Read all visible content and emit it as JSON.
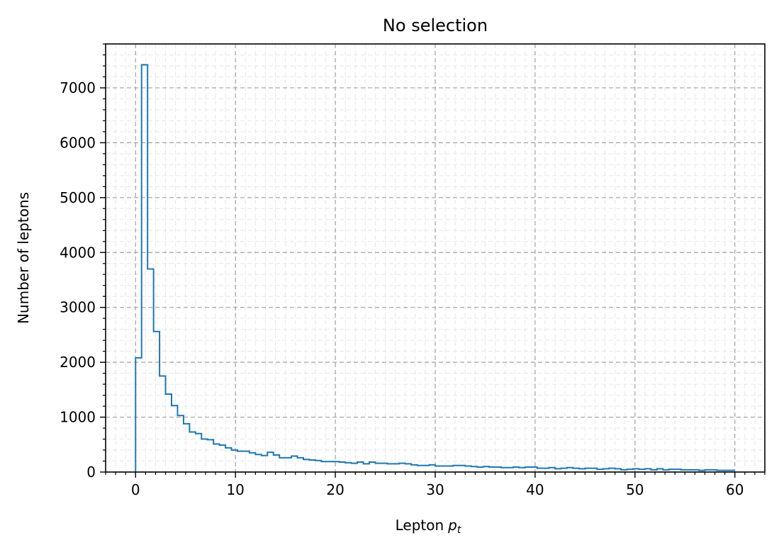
{
  "chart_data": {
    "type": "histogram",
    "title": "No selection",
    "xlabel": "Lepton",
    "xlabel_symbol": "p",
    "xlabel_subscript": "t",
    "ylabel": "Number of leptons",
    "xlim": [
      -3,
      63
    ],
    "ylim": [
      0,
      7800
    ],
    "x_ticks": [
      0,
      10,
      20,
      30,
      40,
      50,
      60
    ],
    "x_tick_labels": [
      "0",
      "10",
      "20",
      "30",
      "40",
      "50",
      "60"
    ],
    "y_ticks": [
      0,
      1000,
      2000,
      3000,
      4000,
      5000,
      6000,
      7000
    ],
    "y_tick_labels": [
      "0",
      "1000",
      "2000",
      "3000",
      "4000",
      "5000",
      "6000",
      "7000"
    ],
    "x_minor_step": 1,
    "y_minor_step": 200,
    "grid": true,
    "minor_grid": true,
    "line_color": "#1f77b4",
    "grid_color": "#a0a0a0",
    "minor_grid_color": "#e6e6e6",
    "series": [
      {
        "bin_edges_start": 0,
        "bin_width": 0.6,
        "values": [
          2080,
          7420,
          3700,
          2560,
          1750,
          1420,
          1210,
          1030,
          880,
          730,
          700,
          600,
          590,
          510,
          490,
          440,
          400,
          380,
          380,
          350,
          320,
          300,
          360,
          310,
          260,
          260,
          290,
          260,
          230,
          220,
          210,
          190,
          190,
          190,
          180,
          170,
          160,
          180,
          150,
          180,
          160,
          160,
          150,
          150,
          160,
          150,
          130,
          120,
          120,
          130,
          110,
          110,
          110,
          120,
          120,
          110,
          100,
          90,
          100,
          90,
          90,
          80,
          80,
          90,
          80,
          90,
          90,
          70,
          70,
          80,
          60,
          70,
          80,
          70,
          60,
          70,
          70,
          50,
          60,
          70,
          60,
          40,
          50,
          60,
          50,
          60,
          40,
          60,
          40,
          50,
          50,
          40,
          40,
          40,
          30,
          40,
          40,
          30,
          30,
          30
        ]
      }
    ]
  }
}
